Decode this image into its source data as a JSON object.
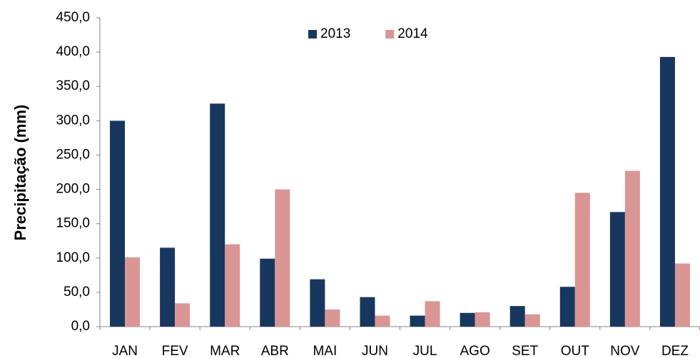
{
  "chart_data": {
    "type": "bar",
    "y_label": "Precipitação (mm)",
    "categories": [
      "JAN",
      "FEV",
      "MAR",
      "ABR",
      "MAI",
      "JUN",
      "JUL",
      "AGO",
      "SET",
      "OUT",
      "NOV",
      "DEZ"
    ],
    "series": [
      {
        "name": "2013",
        "color": "#17375e",
        "values": [
          300,
          115,
          325,
          99,
          69,
          43,
          16,
          20,
          30,
          58,
          167,
          393
        ]
      },
      {
        "name": "2014",
        "color": "#d99694",
        "values": [
          101,
          34,
          120,
          200,
          25,
          16,
          37,
          21,
          18,
          195,
          227,
          92
        ]
      }
    ],
    "ylim": [
      0,
      450
    ],
    "yticks": [
      {
        "value": 0,
        "label": "0,0"
      },
      {
        "value": 50,
        "label": "50,0"
      },
      {
        "value": 100,
        "label": "100,0"
      },
      {
        "value": 150,
        "label": "150,0"
      },
      {
        "value": 200,
        "label": "200,0"
      },
      {
        "value": 250,
        "label": "250,0"
      },
      {
        "value": 300,
        "label": "300,0"
      },
      {
        "value": 350,
        "label": "350,0"
      },
      {
        "value": 400,
        "label": "400,0"
      },
      {
        "value": 450,
        "label": "450,0"
      }
    ],
    "legend": "top",
    "grid": false
  }
}
